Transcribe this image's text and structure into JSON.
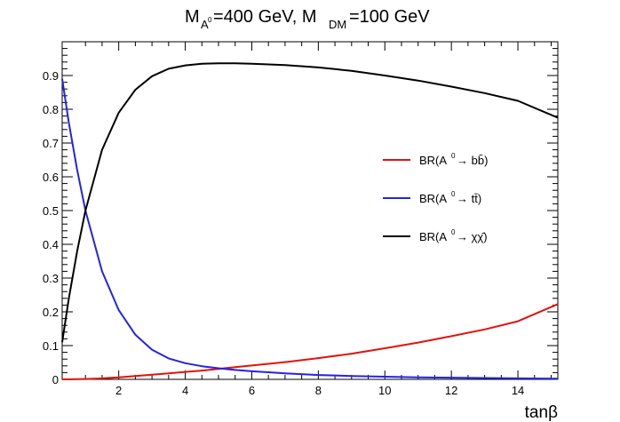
{
  "chart_data": {
    "type": "line",
    "title": {
      "part1_main": "M",
      "part1_sub": "A",
      "part1_sup": "0",
      "part2_main": "=400 GeV, M",
      "part2_sub": "DM",
      "part3_main": "=100 GeV"
    },
    "xlabel": "tanβ",
    "ylabel": "",
    "xlim": [
      0.3,
      15.2
    ],
    "ylim": [
      0,
      1.0
    ],
    "x_ticks": [
      2,
      4,
      6,
      8,
      10,
      12,
      14
    ],
    "x_tick_labels": [
      "2",
      "4",
      "6",
      "8",
      "10",
      "12",
      "14"
    ],
    "y_ticks": [
      0,
      0.1,
      0.2,
      0.3,
      0.4,
      0.5,
      0.6,
      0.7,
      0.8,
      0.9
    ],
    "y_tick_labels": [
      "0",
      "0.1",
      "0.2",
      "0.3",
      "0.4",
      "0.5",
      "0.6",
      "0.7",
      "0.8",
      "0.9"
    ],
    "grid": false,
    "legend_position": "right-center",
    "x": [
      0.3,
      0.5,
      0.75,
      1.0,
      1.5,
      2.0,
      2.5,
      3.0,
      3.5,
      4.0,
      4.5,
      5.0,
      5.5,
      6.0,
      6.5,
      7.0,
      8.0,
      9.0,
      10.0,
      11.0,
      12.0,
      13.0,
      14.0,
      15.2
    ],
    "series": [
      {
        "legend_prefix": "BR(A",
        "legend_sup": "0",
        "legend_suffix": "→ bb̄)",
        "color": "#e3120b",
        "values": [
          0.0,
          0.0001,
          0.0005,
          0.001,
          0.003,
          0.006,
          0.01,
          0.014,
          0.018,
          0.022,
          0.026,
          0.031,
          0.036,
          0.041,
          0.046,
          0.051,
          0.063,
          0.076,
          0.092,
          0.109,
          0.128,
          0.148,
          0.172,
          0.223
        ]
      },
      {
        "legend_prefix": "BR(A",
        "legend_sup": "0",
        "legend_suffix": "→ tt̄)",
        "color": "#2323e6",
        "values": [
          0.89,
          0.76,
          0.62,
          0.5,
          0.32,
          0.205,
          0.132,
          0.088,
          0.062,
          0.048,
          0.039,
          0.033,
          0.028,
          0.024,
          0.021,
          0.018,
          0.013,
          0.01,
          0.008,
          0.006,
          0.005,
          0.004,
          0.003,
          0.002
        ]
      },
      {
        "legend_prefix": "BR(A",
        "legend_sup": "0",
        "legend_suffix": "→ χχ̄)",
        "color": "#000000",
        "values": [
          0.11,
          0.24,
          0.38,
          0.5,
          0.68,
          0.79,
          0.858,
          0.898,
          0.92,
          0.93,
          0.935,
          0.936,
          0.936,
          0.935,
          0.933,
          0.931,
          0.924,
          0.914,
          0.9,
          0.885,
          0.867,
          0.848,
          0.825,
          0.775
        ]
      }
    ]
  }
}
